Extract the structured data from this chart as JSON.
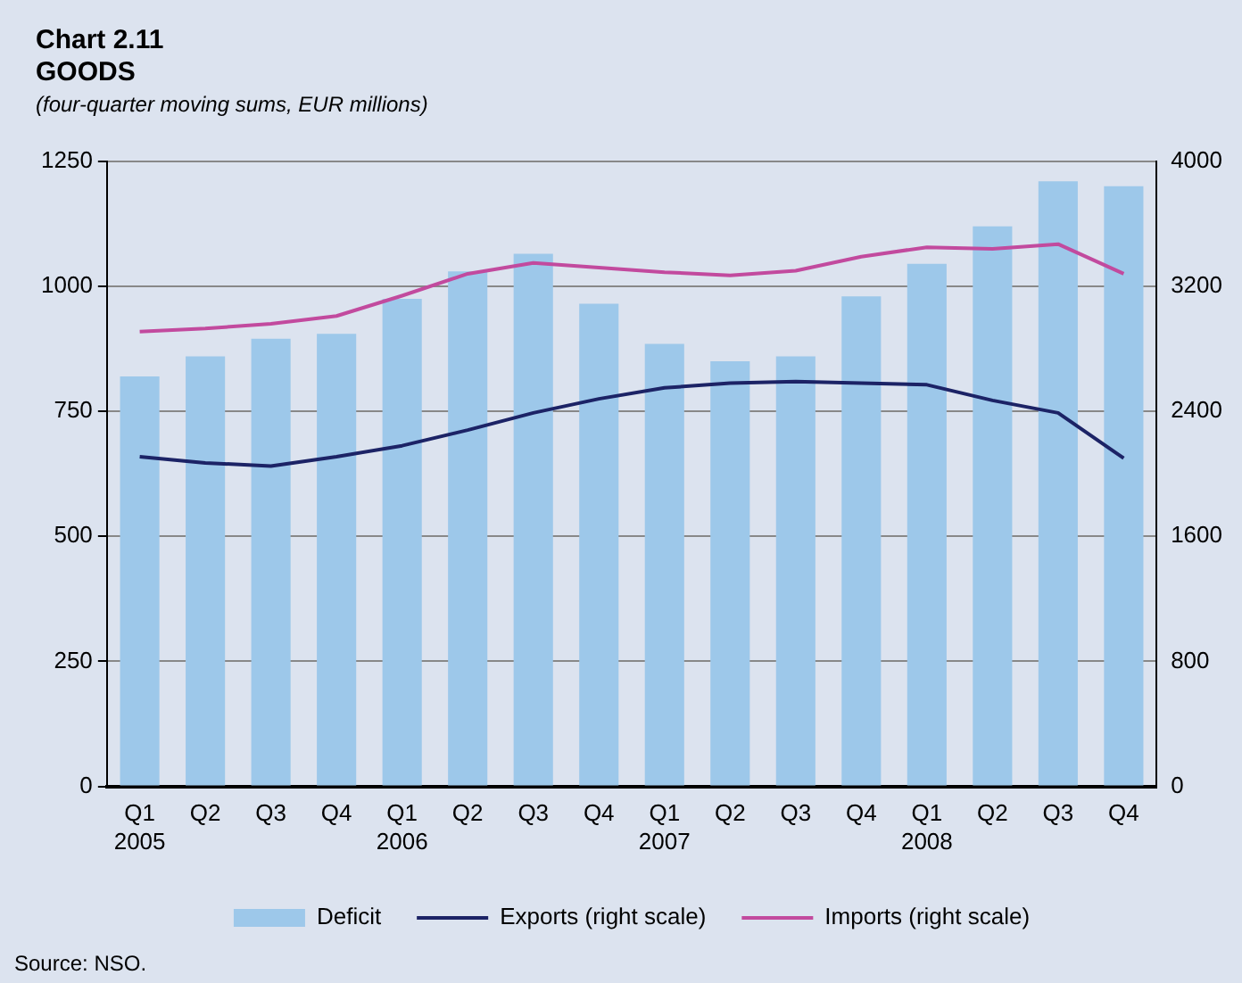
{
  "chart_data": {
    "type": "bar",
    "title": "Chart 2.11\nGOODS",
    "subtitle": "(four-quarter moving sums, EUR millions)",
    "categories": [
      "Q1\n2005",
      "Q2",
      "Q3",
      "Q4",
      "Q1\n2006",
      "Q2",
      "Q3",
      "Q4",
      "Q1\n2007",
      "Q2",
      "Q3",
      "Q4",
      "Q1\n2008",
      "Q2",
      "Q3",
      "Q4"
    ],
    "series": [
      {
        "name": "Deficit",
        "color": "#9dc8ea",
        "values": [
          820,
          860,
          895,
          905,
          975,
          1030,
          1065,
          965,
          885,
          850,
          860,
          980,
          1045,
          1120,
          1210,
          1200
        ]
      },
      {
        "name": "Exports (right scale)",
        "type": "line",
        "axis": "y2",
        "color": "#1c2366",
        "values": [
          2110,
          2070,
          2050,
          2110,
          2180,
          2280,
          2390,
          2480,
          2550,
          2580,
          2590,
          2580,
          2570,
          2470,
          2390,
          2100
        ]
      },
      {
        "name": "Imports (right scale)",
        "type": "line",
        "axis": "y2",
        "color": "#c24a9e",
        "values": [
          2910,
          2930,
          2960,
          3010,
          3140,
          3280,
          3350,
          3320,
          3290,
          3270,
          3300,
          3390,
          3450,
          3440,
          3470,
          3280
        ]
      }
    ],
    "ylim": [
      0,
      1250
    ],
    "yticks": [
      0,
      250,
      500,
      750,
      1000,
      1250
    ],
    "y2lim": [
      0,
      4000
    ],
    "y2ticks": [
      0,
      800,
      1600,
      2400,
      3200,
      4000
    ],
    "grid": "y",
    "legend": "bottom",
    "marker": "none",
    "line_style": "solid",
    "annotations": [
      "Source: NSO."
    ]
  }
}
